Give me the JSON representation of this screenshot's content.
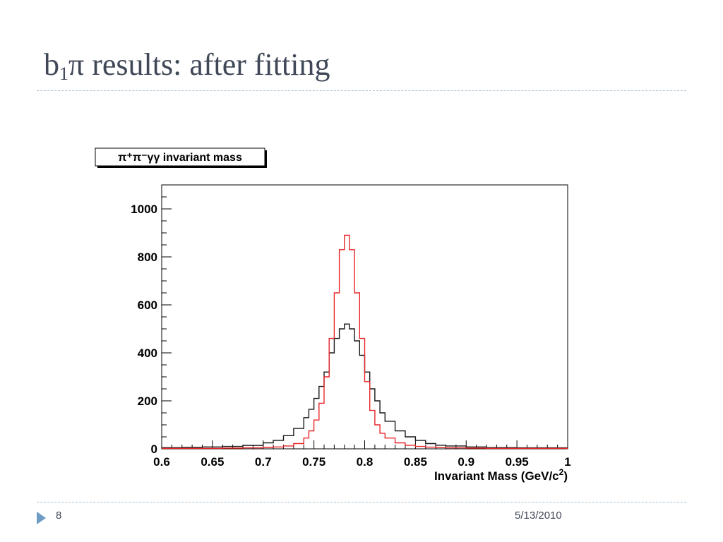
{
  "slide": {
    "title_main": "b",
    "title_sub": "1",
    "title_rest": "π results: after fitting",
    "page_number": "8",
    "date": "5/13/2010"
  },
  "colors": {
    "title": "#404858",
    "rule": "#a9bfd1",
    "bullet": "#6f9cc5",
    "series_black": "#1a1a1a",
    "series_red": "#e8272a"
  },
  "icons": {
    "footer_bullet": "triangle-right-icon"
  },
  "chart_data": {
    "type": "line",
    "style": "step-histogram",
    "title": "π⁺π⁻γγ invariant mass",
    "xlabel": "Invariant Mass (GeV/c²)",
    "ylabel": "",
    "xlim": [
      0.6,
      1.0
    ],
    "ylim": [
      0,
      1100
    ],
    "xticks": [
      "0.6",
      "0.65",
      "0.7",
      "0.75",
      "0.8",
      "0.85",
      "0.9",
      "0.95",
      "1"
    ],
    "yticks": [
      "0",
      "200",
      "400",
      "600",
      "800",
      "1000"
    ],
    "grid": false,
    "legend": "none",
    "x": [
      0.6,
      0.62,
      0.64,
      0.66,
      0.68,
      0.7,
      0.71,
      0.72,
      0.73,
      0.74,
      0.745,
      0.75,
      0.755,
      0.76,
      0.765,
      0.77,
      0.775,
      0.78,
      0.785,
      0.79,
      0.795,
      0.8,
      0.805,
      0.81,
      0.815,
      0.82,
      0.83,
      0.84,
      0.85,
      0.86,
      0.87,
      0.88,
      0.9,
      0.92,
      0.95,
      1.0
    ],
    "series": [
      {
        "color": "#1a1a1a",
        "values": [
          5,
          6,
          8,
          10,
          14,
          25,
          35,
          55,
          85,
          130,
          165,
          210,
          260,
          320,
          400,
          460,
          500,
          520,
          500,
          450,
          390,
          320,
          250,
          200,
          150,
          115,
          75,
          50,
          35,
          22,
          15,
          12,
          8,
          5,
          4,
          3
        ]
      },
      {
        "color": "#e8272a",
        "values": [
          2,
          2,
          2,
          3,
          4,
          6,
          8,
          12,
          22,
          45,
          75,
          120,
          190,
          300,
          460,
          650,
          830,
          890,
          830,
          650,
          460,
          280,
          160,
          100,
          65,
          45,
          25,
          15,
          10,
          7,
          5,
          4,
          3,
          2,
          2,
          1
        ]
      }
    ]
  }
}
